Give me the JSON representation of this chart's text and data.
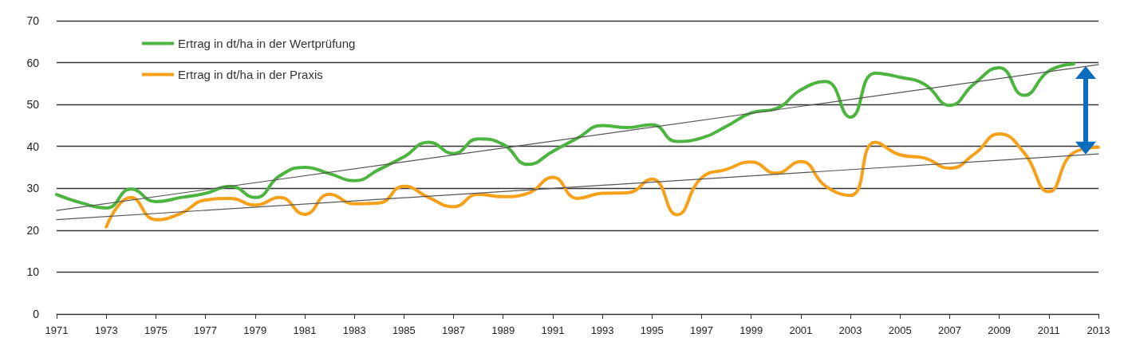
{
  "chart_data": {
    "type": "line",
    "x": [
      1971,
      1972,
      1973,
      1974,
      1975,
      1976,
      1977,
      1978,
      1979,
      1980,
      1981,
      1982,
      1983,
      1984,
      1985,
      1986,
      1987,
      1988,
      1989,
      1990,
      1991,
      1992,
      1993,
      1994,
      1995,
      1996,
      1997,
      1998,
      1999,
      2000,
      2001,
      2002,
      2003,
      2004,
      2005,
      2006,
      2007,
      2008,
      2009,
      2010,
      2011,
      2012
    ],
    "series": [
      {
        "name": "Ertrag in dt/ha in der Wertprüfung",
        "color": "#4cb53f",
        "values": [
          28.5,
          26.5,
          25.3,
          29.8,
          26.8,
          27.8,
          28.8,
          30.5,
          27.8,
          33,
          35,
          33.5,
          31.8,
          34.5,
          37.5,
          41,
          38.3,
          41.8,
          40.5,
          35.7,
          38.8,
          42,
          45,
          44.5,
          45.2,
          41.2,
          42,
          44.8,
          48,
          49,
          53.5,
          55.5,
          47,
          57.5,
          56.5,
          54.8,
          49.8,
          55,
          58.8,
          52.2,
          58,
          59.7
        ]
      },
      {
        "name": "Ertrag in dt/ha in der Praxis",
        "color": "#f7a11a",
        "x": [
          1973,
          1974,
          1975,
          1976,
          1977,
          1978,
          1979,
          1980,
          1981,
          1982,
          1983,
          1984,
          1985,
          1986,
          1987,
          1988,
          1989,
          1990,
          1991,
          1992,
          1993,
          1994,
          1995,
          1996,
          1997,
          1998,
          1999,
          2000,
          2001,
          2002,
          2003,
          2004,
          2005,
          2006,
          2007,
          2008,
          2009,
          2010,
          2011,
          2012,
          2013
        ],
        "values": [
          20.8,
          27.8,
          22.5,
          24,
          27.2,
          27.6,
          26,
          27.8,
          23.8,
          28.6,
          26.3,
          26.5,
          30.5,
          27.8,
          25.6,
          28.6,
          28,
          28.8,
          32.6,
          27.6,
          28.8,
          28.9,
          32.2,
          23.7,
          32.5,
          34.5,
          36.3,
          33.6,
          36.4,
          30.5,
          28.3,
          41,
          38,
          37.2,
          34.8,
          38.2,
          43,
          38.5,
          29.2,
          38.5,
          39.8
        ]
      },
      {
        "type": "line",
        "color": "#555555",
        "x": [
          1971,
          2013
        ],
        "values": [
          24.7,
          59.5
        ]
      },
      {
        "type": "line",
        "color": "#555555",
        "x": [
          1971,
          2013
        ],
        "values": [
          22.5,
          38.2
        ]
      }
    ],
    "xlim": [
      1971,
      2013
    ],
    "xticks": [
      1971,
      1973,
      1975,
      1977,
      1979,
      1981,
      1983,
      1985,
      1987,
      1989,
      1991,
      1993,
      1995,
      1997,
      1999,
      2001,
      2003,
      2005,
      2007,
      2009,
      2011,
      2013
    ],
    "ylim": [
      0,
      70
    ],
    "yticks": [
      0,
      10,
      20,
      30,
      40,
      50,
      60,
      70
    ],
    "grid": "y",
    "legend": "top left",
    "marker": "none",
    "line_style": "solid"
  }
}
